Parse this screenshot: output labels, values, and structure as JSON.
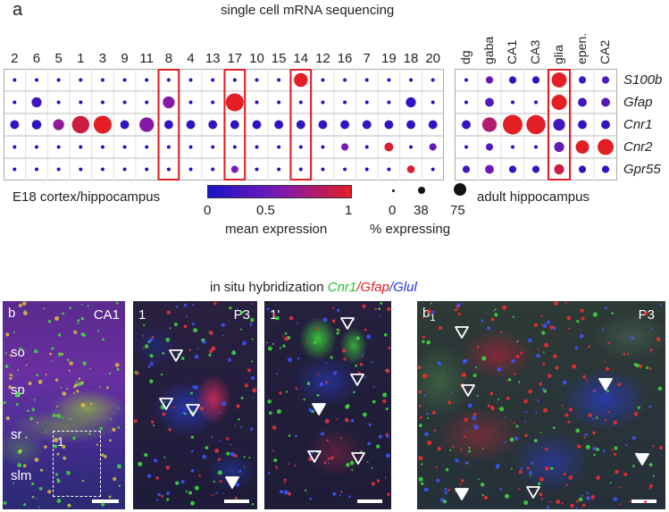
{
  "panel_a": {
    "letter": "a",
    "title": "single cell mRNA sequencing",
    "left_columns": [
      "2",
      "6",
      "5",
      "1",
      "3",
      "9",
      "11",
      "8",
      "4",
      "13",
      "17",
      "10",
      "15",
      "14",
      "12",
      "16",
      "7",
      "19",
      "18",
      "20"
    ],
    "right_columns": [
      "dg",
      "gaba",
      "CA1",
      "CA3",
      "glia",
      "epen.",
      "CA2"
    ],
    "rows": [
      "S100b",
      "Gfap",
      "Cnr1",
      "Cnr2",
      "Gpr55"
    ],
    "left_caption": "E18 cortex/hippocampus",
    "right_caption": "adult hippocampus",
    "highlighted_left": [
      "8",
      "17",
      "14"
    ],
    "highlighted_right": [
      "glia"
    ],
    "colorbar": {
      "ticks": [
        "0",
        "0.5",
        "1"
      ],
      "label": "mean expression",
      "colors": [
        "#1a14c8",
        "#7a1ab4",
        "#e31e24"
      ]
    },
    "size_legend": {
      "ticks": [
        "0",
        "38",
        "75"
      ],
      "label": "% expressing"
    },
    "dots_left": [
      [
        [
          0,
          0
        ],
        [
          0,
          0
        ],
        [
          0,
          0
        ],
        [
          0,
          0
        ],
        [
          0,
          0
        ],
        [
          0,
          0
        ],
        [
          0,
          0
        ],
        [
          0,
          0
        ],
        [
          0,
          0
        ],
        [
          0,
          0
        ],
        [
          0,
          0
        ],
        [
          0,
          0
        ],
        [
          0,
          0
        ],
        [
          1,
          30
        ],
        [
          0,
          0
        ],
        [
          0,
          0
        ],
        [
          0,
          0
        ],
        [
          0,
          0
        ],
        [
          0,
          0
        ],
        [
          0,
          0
        ]
      ],
      [
        [
          0,
          0
        ],
        [
          0.2,
          12
        ],
        [
          0,
          0
        ],
        [
          0,
          0
        ],
        [
          0,
          0
        ],
        [
          0,
          0
        ],
        [
          0,
          0
        ],
        [
          0.55,
          20
        ],
        [
          0,
          0
        ],
        [
          0,
          0
        ],
        [
          1,
          60
        ],
        [
          0,
          0
        ],
        [
          0,
          0
        ],
        [
          0,
          0
        ],
        [
          0,
          0
        ],
        [
          0,
          0
        ],
        [
          0,
          0
        ],
        [
          0,
          0
        ],
        [
          0.1,
          12
        ],
        [
          0,
          0
        ]
      ],
      [
        [
          0.1,
          8
        ],
        [
          0.1,
          10
        ],
        [
          0.6,
          16
        ],
        [
          0.9,
          55
        ],
        [
          1,
          60
        ],
        [
          0.1,
          8
        ],
        [
          0.55,
          35
        ],
        [
          0.1,
          8
        ],
        [
          0.1,
          8
        ],
        [
          0.1,
          8
        ],
        [
          0.1,
          8
        ],
        [
          0.1,
          8
        ],
        [
          0.1,
          8
        ],
        [
          0.1,
          8
        ],
        [
          0.1,
          8
        ],
        [
          0.1,
          8
        ],
        [
          0.1,
          8
        ],
        [
          0.1,
          8
        ],
        [
          0.1,
          8
        ],
        [
          0.1,
          8
        ]
      ],
      [
        [
          0,
          0
        ],
        [
          0,
          0
        ],
        [
          0,
          0
        ],
        [
          0,
          0
        ],
        [
          0,
          0
        ],
        [
          0,
          0
        ],
        [
          0,
          0
        ],
        [
          0,
          0
        ],
        [
          0,
          0
        ],
        [
          0,
          0
        ],
        [
          0,
          0
        ],
        [
          0,
          0
        ],
        [
          0,
          0
        ],
        [
          0,
          0
        ],
        [
          0,
          0
        ],
        [
          0.5,
          4
        ],
        [
          0,
          0
        ],
        [
          0.95,
          8
        ],
        [
          0,
          0
        ],
        [
          0.4,
          4
        ]
      ],
      [
        [
          0,
          0
        ],
        [
          0,
          0
        ],
        [
          0,
          0
        ],
        [
          0,
          0
        ],
        [
          0,
          0
        ],
        [
          0,
          0
        ],
        [
          0,
          0
        ],
        [
          0,
          0
        ],
        [
          0,
          0
        ],
        [
          0,
          0
        ],
        [
          0.5,
          4
        ],
        [
          0,
          0
        ],
        [
          0,
          0
        ],
        [
          0,
          0
        ],
        [
          0,
          0
        ],
        [
          0,
          0
        ],
        [
          0,
          0
        ],
        [
          0,
          0
        ],
        [
          0.95,
          5
        ],
        [
          0,
          0
        ]
      ]
    ],
    "dots_right": [
      [
        [
          0,
          0
        ],
        [
          0.4,
          4
        ],
        [
          0.1,
          4
        ],
        [
          0.1,
          4
        ],
        [
          1,
          38
        ],
        [
          0.2,
          4
        ],
        [
          0.3,
          4
        ]
      ],
      [
        [
          0,
          0
        ],
        [
          0.3,
          8
        ],
        [
          0,
          0
        ],
        [
          0,
          0
        ],
        [
          1,
          40
        ],
        [
          0.2,
          8
        ],
        [
          0.3,
          8
        ]
      ],
      [
        [
          0.1,
          8
        ],
        [
          0.75,
          35
        ],
        [
          1,
          75
        ],
        [
          1,
          70
        ],
        [
          0.2,
          20
        ],
        [
          0.1,
          8
        ],
        [
          0.1,
          8
        ]
      ],
      [
        [
          0,
          0
        ],
        [
          0.3,
          4
        ],
        [
          0,
          0
        ],
        [
          0,
          0
        ],
        [
          0.4,
          12
        ],
        [
          1,
          28
        ],
        [
          1,
          45
        ]
      ],
      [
        [
          0.2,
          4
        ],
        [
          0.45,
          8
        ],
        [
          0.1,
          4
        ],
        [
          0.1,
          4
        ],
        [
          0.9,
          12
        ],
        [
          0.1,
          4
        ],
        [
          0.1,
          4
        ]
      ]
    ]
  },
  "panel_b": {
    "ish_title_prefix": "in situ hybridization ",
    "ish_cnr1": "Cnr1",
    "ish_slash1": "/",
    "ish_gfap": "Gfap",
    "ish_slash2": "/",
    "ish_glul": "Glul",
    "b_letter": "b",
    "b_region": "CA1",
    "layers": [
      "so",
      "sp",
      "sr",
      "slm"
    ],
    "inset_label": "1",
    "img1_label": "1",
    "img1_age": "P3",
    "img2_label": "1'",
    "b1_letter": "b",
    "b1_sub": "1",
    "b1_age": "P3"
  }
}
